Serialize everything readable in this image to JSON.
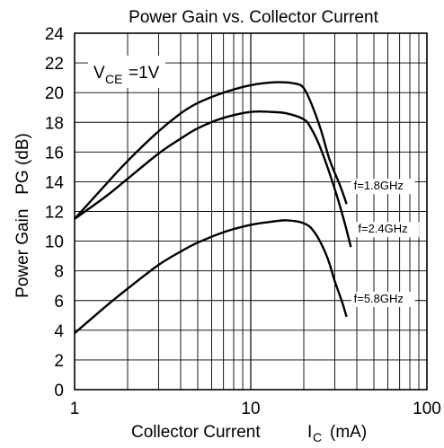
{
  "chart_data": {
    "type": "line",
    "title": "Power Gain vs. Collector Current",
    "xlabel": "Collector Current",
    "xlabel_symbol": "I",
    "xlabel_symbol_sub": "C",
    "xlabel_unit": "(mA)",
    "ylabel": "Power Gain   PG (dB)",
    "condition_main": "V",
    "condition_sub": "CE",
    "condition_rest": "=1V",
    "x_scale": "log",
    "xlim": [
      1,
      100
    ],
    "ylim": [
      0,
      24
    ],
    "grid": true,
    "x_ticks": [
      "1",
      "10",
      "100"
    ],
    "y_ticks": [
      "0",
      "2",
      "4",
      "6",
      "8",
      "10",
      "12",
      "14",
      "16",
      "18",
      "20",
      "22",
      "24"
    ],
    "series": [
      {
        "name": "f=1.8GHz",
        "x": [
          1,
          1.5,
          2,
          3,
          4,
          5,
          7,
          10,
          14,
          18,
          20,
          22,
          25,
          28,
          32,
          35
        ],
        "y": [
          11.5,
          13.8,
          15.4,
          17.4,
          18.6,
          19.3,
          20.0,
          20.5,
          20.7,
          20.6,
          20.3,
          19.3,
          17.5,
          15.5,
          13.8,
          12.5
        ]
      },
      {
        "name": "f=2.4GHz",
        "x": [
          1,
          1.5,
          2,
          3,
          4,
          5,
          7,
          10,
          13,
          16,
          20,
          22,
          25,
          30,
          34,
          37
        ],
        "y": [
          11.5,
          13.0,
          14.2,
          15.9,
          16.9,
          17.6,
          18.3,
          18.7,
          18.7,
          18.6,
          18.2,
          17.6,
          16.2,
          13.5,
          11.3,
          9.6
        ]
      },
      {
        "name": "f=5.8GHz",
        "x": [
          1,
          1.5,
          2,
          3,
          4,
          5,
          7,
          10,
          13,
          16,
          20,
          23,
          27,
          30,
          33,
          35
        ],
        "y": [
          3.8,
          5.6,
          6.8,
          8.4,
          9.3,
          9.9,
          10.6,
          11.1,
          11.3,
          11.4,
          11.2,
          10.6,
          9.0,
          7.3,
          5.9,
          4.9
        ]
      }
    ]
  }
}
